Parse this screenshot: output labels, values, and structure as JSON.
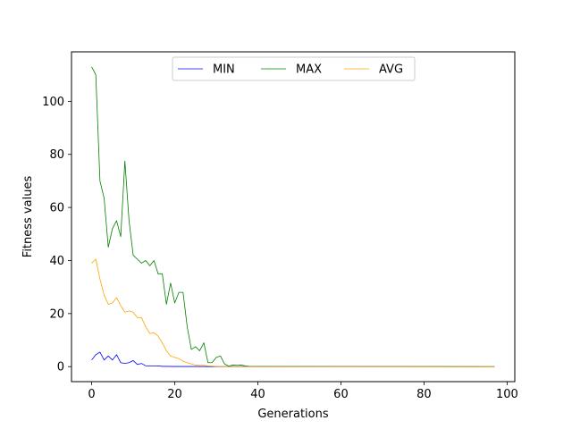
{
  "chart_data": {
    "type": "line",
    "xlabel": "Generations",
    "ylabel": "Fitness values",
    "xlim": [
      -4.85,
      101.85
    ],
    "ylim": [
      -5.65,
      118.65
    ],
    "xticks": [
      0,
      20,
      40,
      60,
      80,
      100
    ],
    "yticks": [
      0,
      20,
      40,
      60,
      80,
      100
    ],
    "grid": false,
    "legend_position": "upper-center",
    "series": [
      {
        "name": "MIN",
        "color": "#0000ff",
        "points": [
          [
            0,
            2.5
          ],
          [
            1,
            4.5
          ],
          [
            2,
            5.5
          ],
          [
            3,
            2.5
          ],
          [
            4,
            4
          ],
          [
            5,
            2.5
          ],
          [
            6,
            4.5
          ],
          [
            7,
            1.5
          ],
          [
            8,
            1.2
          ],
          [
            9,
            1.5
          ],
          [
            10,
            2.3
          ],
          [
            11,
            0.8
          ],
          [
            12,
            1.2
          ],
          [
            13,
            0.3
          ],
          [
            14,
            0.2
          ],
          [
            15,
            0.2
          ],
          [
            16,
            0.3
          ],
          [
            17,
            0.1
          ],
          [
            18,
            0.1
          ],
          [
            20,
            0.05
          ],
          [
            25,
            0.05
          ],
          [
            30,
            0.02
          ],
          [
            97,
            0
          ]
        ]
      },
      {
        "name": "MAX",
        "color": "#008000",
        "points": [
          [
            0,
            113
          ],
          [
            1,
            110
          ],
          [
            2,
            70
          ],
          [
            3,
            63.5
          ],
          [
            4,
            45
          ],
          [
            5,
            52
          ],
          [
            6,
            55
          ],
          [
            7,
            49
          ],
          [
            8,
            77.5
          ],
          [
            9,
            55
          ],
          [
            10,
            42
          ],
          [
            11,
            40.5
          ],
          [
            12,
            39
          ],
          [
            13,
            40
          ],
          [
            14,
            38
          ],
          [
            15,
            40
          ],
          [
            16,
            35
          ],
          [
            17,
            35
          ],
          [
            18,
            23.5
          ],
          [
            19,
            31.5
          ],
          [
            20,
            24
          ],
          [
            21,
            28
          ],
          [
            22,
            28
          ],
          [
            23,
            15
          ],
          [
            24,
            6.5
          ],
          [
            25,
            7.5
          ],
          [
            26,
            6
          ],
          [
            27,
            9
          ],
          [
            28,
            1.5
          ],
          [
            29,
            1.5
          ],
          [
            30,
            3.5
          ],
          [
            31,
            4
          ],
          [
            32,
            1
          ],
          [
            33,
            0.2
          ],
          [
            34,
            0.6
          ],
          [
            35,
            0.5
          ],
          [
            36,
            0.6
          ],
          [
            37,
            0.3
          ],
          [
            38,
            0.1
          ],
          [
            40,
            0.05
          ],
          [
            97,
            0
          ]
        ]
      },
      {
        "name": "AVG",
        "color": "#ffa500",
        "points": [
          [
            0,
            39
          ],
          [
            1,
            40.5
          ],
          [
            2,
            33
          ],
          [
            3,
            27
          ],
          [
            4,
            23.5
          ],
          [
            5,
            24
          ],
          [
            6,
            26
          ],
          [
            7,
            23
          ],
          [
            8,
            20.5
          ],
          [
            9,
            21
          ],
          [
            10,
            20.5
          ],
          [
            11,
            18.5
          ],
          [
            12,
            18.5
          ],
          [
            13,
            15
          ],
          [
            14,
            12.5
          ],
          [
            15,
            12.8
          ],
          [
            16,
            11.5
          ],
          [
            17,
            9
          ],
          [
            18,
            6
          ],
          [
            19,
            4
          ],
          [
            20,
            3.5
          ],
          [
            21,
            3
          ],
          [
            22,
            2
          ],
          [
            23,
            1.5
          ],
          [
            24,
            1
          ],
          [
            25,
            0.6
          ],
          [
            26,
            0.5
          ],
          [
            27,
            0.5
          ],
          [
            28,
            0.3
          ],
          [
            29,
            0.2
          ],
          [
            30,
            0.1
          ],
          [
            32,
            0.05
          ],
          [
            40,
            0
          ],
          [
            97,
            0
          ]
        ]
      }
    ]
  }
}
